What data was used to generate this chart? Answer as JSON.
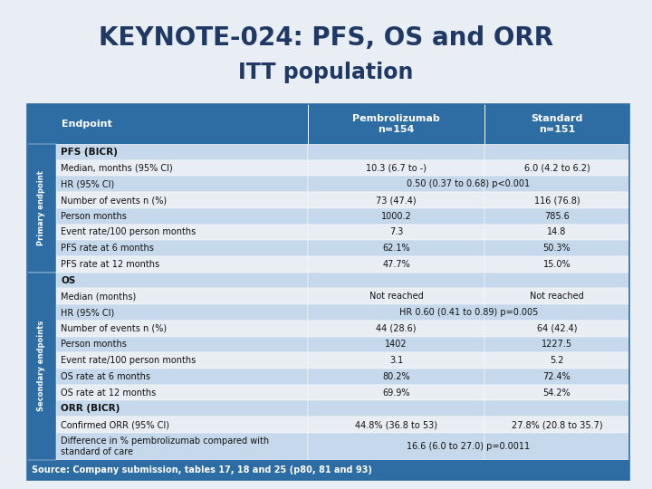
{
  "title_line1": "KEYNOTE-024: PFS, OS and ORR",
  "title_line2": "ITT population",
  "title_color": "#1F3864",
  "bg_color": "#E8EEF4",
  "header_bg": "#2E6DA4",
  "section_label_bg": "#2E6DA4",
  "row_alt_color": "#C5D8EC",
  "row_plain_color": "#E8EEF4",
  "footer_bg": "#2E6DA4",
  "footer_text": "Source: Company submission, tables 17, 18 and 25 (p80, 81 and 93)",
  "col_headers": [
    "Endpoint",
    "Pembrolizumab\nn=154",
    "Standard\nn=151"
  ],
  "rows": [
    {
      "label": "PFS (BICR)",
      "pembro": "",
      "standard": "",
      "bold": true
    },
    {
      "label": "Median, months (95% CI)",
      "pembro": "10.3 (6.7 to -)",
      "standard": "6.0 (4.2 to 6.2)",
      "bold": false
    },
    {
      "label": "HR (95% CI)",
      "pembro": "0.50 (0.37 to 0.68) p<0.001",
      "standard": "",
      "bold": false,
      "merged": true
    },
    {
      "label": "Number of events n (%)",
      "pembro": "73 (47.4)",
      "standard": "116 (76.8)",
      "bold": false
    },
    {
      "label": "Person months",
      "pembro": "1000.2",
      "standard": "785.6",
      "bold": false
    },
    {
      "label": "Event rate/100 person months",
      "pembro": "7.3",
      "standard": "14.8",
      "bold": false
    },
    {
      "label": "PFS rate at 6 months",
      "pembro": "62.1%",
      "standard": "50.3%",
      "bold": false
    },
    {
      "label": "PFS rate at 12 months",
      "pembro": "47.7%",
      "standard": "15.0%",
      "bold": false
    },
    {
      "label": "OS",
      "pembro": "",
      "standard": "",
      "bold": true
    },
    {
      "label": "Median (months)",
      "pembro": "Not reached",
      "standard": "Not reached",
      "bold": false
    },
    {
      "label": "HR (95% CI)",
      "pembro": "HR 0.60 (0.41 to 0.89) p=0.005",
      "standard": "",
      "bold": false,
      "merged": true
    },
    {
      "label": "Number of events n (%)",
      "pembro": "44 (28.6)",
      "standard": "64 (42.4)",
      "bold": false
    },
    {
      "label": "Person months",
      "pembro": "1402",
      "standard": "1227.5",
      "bold": false
    },
    {
      "label": "Event rate/100 person months",
      "pembro": "3.1",
      "standard": "5.2",
      "bold": false
    },
    {
      "label": "OS rate at 6 months",
      "pembro": "80.2%",
      "standard": "72.4%",
      "bold": false
    },
    {
      "label": "OS rate at 12 months",
      "pembro": "69.9%",
      "standard": "54.2%",
      "bold": false
    },
    {
      "label": "ORR (BICR)",
      "pembro": "",
      "standard": "",
      "bold": true
    },
    {
      "label": "Confirmed ORR (95% CI)",
      "pembro": "44.8% (36.8 to 53)",
      "standard": "27.8% (20.8 to 35.7)",
      "bold": false
    },
    {
      "label": "Difference in % pembrolizumab compared with\nstandard of care",
      "pembro": "16.6 (6.0 to 27.0) p=0.0011",
      "standard": "",
      "bold": false,
      "merged": true
    }
  ],
  "primary_rows": [
    0,
    1,
    2,
    3,
    4,
    5,
    6,
    7
  ],
  "secondary_rows": [
    8,
    9,
    10,
    11,
    12,
    13,
    14,
    15,
    16,
    17,
    18
  ]
}
